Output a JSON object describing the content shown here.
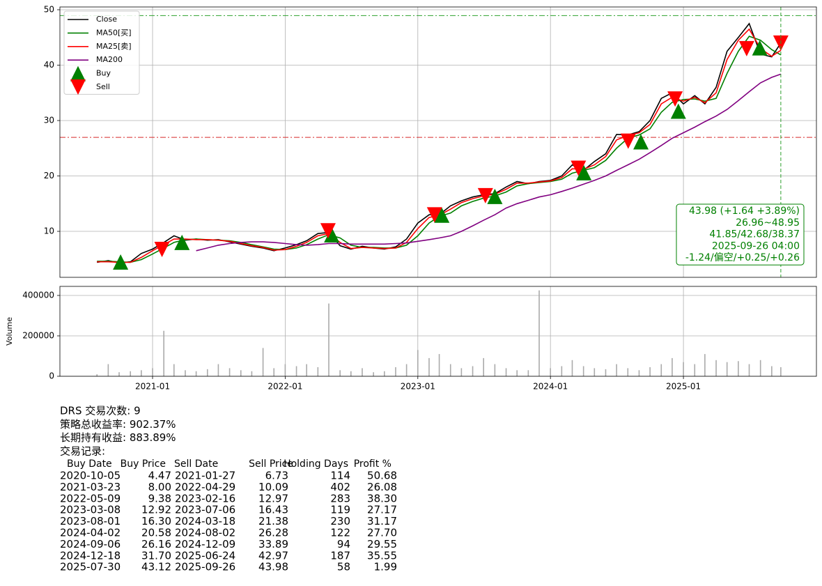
{
  "chart_data": [
    {
      "type": "line",
      "x": [
        "2020-08",
        "2020-09",
        "2020-10",
        "2020-11",
        "2020-12",
        "2021-01",
        "2021-02",
        "2021-03",
        "2021-04",
        "2021-05",
        "2021-06",
        "2021-07",
        "2021-08",
        "2021-09",
        "2021-10",
        "2021-11",
        "2021-12",
        "2022-01",
        "2022-02",
        "2022-03",
        "2022-04",
        "2022-05",
        "2022-06",
        "2022-07",
        "2022-08",
        "2022-09",
        "2022-10",
        "2022-11",
        "2022-12",
        "2023-01",
        "2023-02",
        "2023-03",
        "2023-04",
        "2023-05",
        "2023-06",
        "2023-07",
        "2023-08",
        "2023-09",
        "2023-10",
        "2023-11",
        "2023-12",
        "2024-01",
        "2024-02",
        "2024-03",
        "2024-04",
        "2024-05",
        "2024-06",
        "2024-07",
        "2024-08",
        "2024-09",
        "2024-10",
        "2024-11",
        "2024-12",
        "2025-01",
        "2025-02",
        "2025-03",
        "2025-04",
        "2025-05",
        "2025-06",
        "2025-07",
        "2025-08",
        "2025-09",
        "2025-09-26"
      ],
      "series": [
        {
          "name": "Close",
          "color": "#000000",
          "values": [
            4.4,
            4.7,
            4.3,
            4.5,
            6.0,
            6.8,
            8.0,
            9.2,
            8.4,
            8.6,
            8.4,
            8.5,
            8.1,
            7.7,
            7.3,
            7.0,
            6.5,
            7.0,
            7.6,
            8.3,
            9.6,
            9.8,
            7.4,
            6.8,
            7.3,
            7.0,
            6.8,
            7.2,
            8.6,
            11.5,
            13.0,
            13.0,
            14.6,
            15.5,
            16.2,
            16.6,
            16.8,
            18.0,
            19.0,
            18.6,
            19.0,
            19.2,
            20.0,
            22.0,
            21.0,
            22.6,
            24.0,
            27.5,
            27.4,
            28.0,
            30.0,
            34.0,
            35.0,
            33.0,
            34.5,
            33.0,
            36.0,
            42.5,
            45.0,
            47.5,
            42.0,
            41.5,
            43.98
          ]
        },
        {
          "name": "MA50[买]",
          "color": "#008000",
          "values": [
            4.6,
            4.6,
            4.5,
            4.4,
            4.9,
            5.9,
            7.0,
            8.0,
            8.5,
            8.6,
            8.5,
            8.4,
            8.3,
            8.0,
            7.6,
            7.2,
            6.8,
            6.7,
            7.0,
            7.6,
            8.6,
            9.4,
            8.8,
            7.5,
            7.1,
            7.1,
            7.0,
            7.0,
            7.5,
            9.2,
            11.5,
            12.7,
            13.3,
            14.6,
            15.4,
            16.0,
            16.4,
            17.1,
            18.2,
            18.6,
            18.8,
            19.0,
            19.4,
            20.5,
            21.0,
            21.5,
            22.8,
            25.0,
            26.8,
            27.4,
            28.5,
            31.5,
            33.3,
            33.8,
            33.9,
            33.5,
            34.0,
            38.5,
            42.5,
            45.2,
            44.5,
            42.8,
            41.85
          ]
        },
        {
          "name": "MA25[卖]",
          "color": "#ff0000",
          "values": [
            4.5,
            4.5,
            4.4,
            4.4,
            5.3,
            6.5,
            7.6,
            8.6,
            8.6,
            8.5,
            8.5,
            8.4,
            8.2,
            7.8,
            7.4,
            7.1,
            6.6,
            6.7,
            7.3,
            8.0,
            9.2,
            9.6,
            8.0,
            6.9,
            7.1,
            7.0,
            6.9,
            7.0,
            8.0,
            10.5,
            12.5,
            12.9,
            14.0,
            15.2,
            15.9,
            16.4,
            16.7,
            17.6,
            18.7,
            18.7,
            18.9,
            19.1,
            19.7,
            21.3,
            21.2,
            22.0,
            23.5,
            26.5,
            27.3,
            27.8,
            29.3,
            33.0,
            34.2,
            33.5,
            34.2,
            33.2,
            35.0,
            41.0,
            44.5,
            46.5,
            43.0,
            41.6,
            42.68
          ]
        },
        {
          "name": "MA200",
          "color": "#800080",
          "values": [
            null,
            null,
            null,
            null,
            null,
            null,
            null,
            null,
            null,
            6.5,
            7.0,
            7.5,
            7.8,
            8.0,
            8.1,
            8.1,
            8.0,
            7.8,
            7.6,
            7.5,
            7.6,
            7.8,
            7.8,
            7.7,
            7.7,
            7.7,
            7.7,
            7.8,
            7.9,
            8.2,
            8.5,
            8.8,
            9.2,
            10.0,
            11.0,
            12.0,
            13.0,
            14.2,
            15.0,
            15.6,
            16.2,
            16.6,
            17.2,
            17.8,
            18.5,
            19.2,
            20.0,
            21.0,
            22.0,
            23.0,
            24.2,
            25.5,
            26.8,
            27.8,
            28.8,
            29.8,
            30.8,
            32.0,
            33.6,
            35.2,
            36.8,
            37.8,
            38.37
          ]
        },
        {
          "name": "Buy",
          "color": "#008000",
          "marker": "triangle-up",
          "x": [
            "2020-10-05",
            "2021-03-23",
            "2022-05-09",
            "2023-03-08",
            "2023-08-01",
            "2024-04-02",
            "2024-09-06",
            "2024-12-18",
            "2025-07-30"
          ],
          "values": [
            4.47,
            8.0,
            9.38,
            12.92,
            16.3,
            20.58,
            26.16,
            31.7,
            43.12
          ]
        },
        {
          "name": "Sell",
          "color": "#ff0000",
          "marker": "triangle-down",
          "x": [
            "2021-01-27",
            "2022-04-29",
            "2023-02-16",
            "2023-07-06",
            "2024-03-18",
            "2024-08-02",
            "2024-12-09",
            "2025-06-24",
            "2025-09-26"
          ],
          "values": [
            6.73,
            10.09,
            12.97,
            16.43,
            21.38,
            26.28,
            33.89,
            42.97,
            43.98
          ]
        }
      ],
      "xlim": [
        "2020-04-21",
        "2026-01-02"
      ],
      "ylim": [
        1.7,
        50.5
      ],
      "yticks": [
        10,
        20,
        30,
        40,
        50
      ],
      "grid": true,
      "legend": "upper left",
      "hlines": [
        {
          "value": 48.95,
          "color": "#2ca02c"
        },
        {
          "value": 26.96,
          "color": "#d62728"
        }
      ],
      "vline": {
        "value": "2025-09-26",
        "color": "#2ca02c"
      },
      "annotation": [
        "43.98 (+1.64 +3.89%)",
        "26.96~48.95",
        "41.85/42.68/38.37",
        "2025-09-26 04:00",
        "-1.24/偏空/+0.25/+0.26"
      ]
    },
    {
      "type": "bar",
      "x": [
        "2020-08",
        "2020-09",
        "2020-10",
        "2020-11",
        "2020-12",
        "2021-01",
        "2021-02",
        "2021-03",
        "2021-04",
        "2021-05",
        "2021-06",
        "2021-07",
        "2021-08",
        "2021-09",
        "2021-10",
        "2021-11",
        "2021-12",
        "2022-01",
        "2022-02",
        "2022-03",
        "2022-04",
        "2022-05",
        "2022-06",
        "2022-07",
        "2022-08",
        "2022-09",
        "2022-10",
        "2022-11",
        "2022-12",
        "2023-01",
        "2023-02",
        "2023-03",
        "2023-04",
        "2023-05",
        "2023-06",
        "2023-07",
        "2023-08",
        "2023-09",
        "2023-10",
        "2023-11",
        "2023-12",
        "2024-01",
        "2024-02",
        "2024-03",
        "2024-04",
        "2024-05",
        "2024-06",
        "2024-07",
        "2024-08",
        "2024-09",
        "2024-10",
        "2024-11",
        "2024-12",
        "2025-01",
        "2025-02",
        "2025-03",
        "2025-04",
        "2025-05",
        "2025-06",
        "2025-07",
        "2025-08",
        "2025-09",
        "2025-09-26"
      ],
      "values": [
        10000,
        60000,
        20000,
        25000,
        30000,
        40000,
        225000,
        60000,
        30000,
        25000,
        35000,
        60000,
        40000,
        30000,
        25000,
        140000,
        40000,
        60000,
        50000,
        60000,
        45000,
        360000,
        30000,
        25000,
        40000,
        20000,
        25000,
        45000,
        60000,
        130000,
        90000,
        110000,
        60000,
        40000,
        50000,
        90000,
        60000,
        40000,
        30000,
        30000,
        425000,
        40000,
        50000,
        80000,
        50000,
        40000,
        35000,
        60000,
        40000,
        30000,
        45000,
        60000,
        90000,
        70000,
        60000,
        110000,
        80000,
        70000,
        75000,
        60000,
        80000,
        50000,
        45000
      ],
      "color": "#aaaaaa",
      "ylabel": "Volume",
      "xlim": [
        "2020-04-21",
        "2026-01-02"
      ],
      "ylim": [
        0,
        444800
      ],
      "yticks": [
        0,
        200000,
        400000
      ],
      "xticks": [
        "2021-01",
        "2022-01",
        "2023-01",
        "2024-01",
        "2025-01"
      ],
      "grid": true
    }
  ],
  "report": {
    "lines": [
      "DRS 交易次数: 9",
      "策略总收益率: 902.37%",
      "长期持有收益: 883.89%",
      "交易记录:"
    ],
    "columns": [
      "Buy Date",
      "Buy Price",
      "Sell Date",
      "Sell Price",
      "Holding Days",
      "Profit %"
    ],
    "rows": [
      [
        "2020-10-05",
        "4.47",
        "2021-01-27",
        "6.73",
        "114",
        "50.68"
      ],
      [
        "2021-03-23",
        "8.00",
        "2022-04-29",
        "10.09",
        "402",
        "26.08"
      ],
      [
        "2022-05-09",
        "9.38",
        "2023-02-16",
        "12.97",
        "283",
        "38.30"
      ],
      [
        "2023-03-08",
        "12.92",
        "2023-07-06",
        "16.43",
        "119",
        "27.17"
      ],
      [
        "2023-08-01",
        "16.30",
        "2024-03-18",
        "21.38",
        "230",
        "31.17"
      ],
      [
        "2024-04-02",
        "20.58",
        "2024-08-02",
        "26.28",
        "122",
        "27.70"
      ],
      [
        "2024-09-06",
        "26.16",
        "2024-12-09",
        "33.89",
        "94",
        "29.55"
      ],
      [
        "2024-12-18",
        "31.70",
        "2025-06-24",
        "42.97",
        "187",
        "35.55"
      ],
      [
        "2025-07-30",
        "43.12",
        "2025-09-26",
        "43.98",
        "58",
        "1.99"
      ]
    ]
  }
}
